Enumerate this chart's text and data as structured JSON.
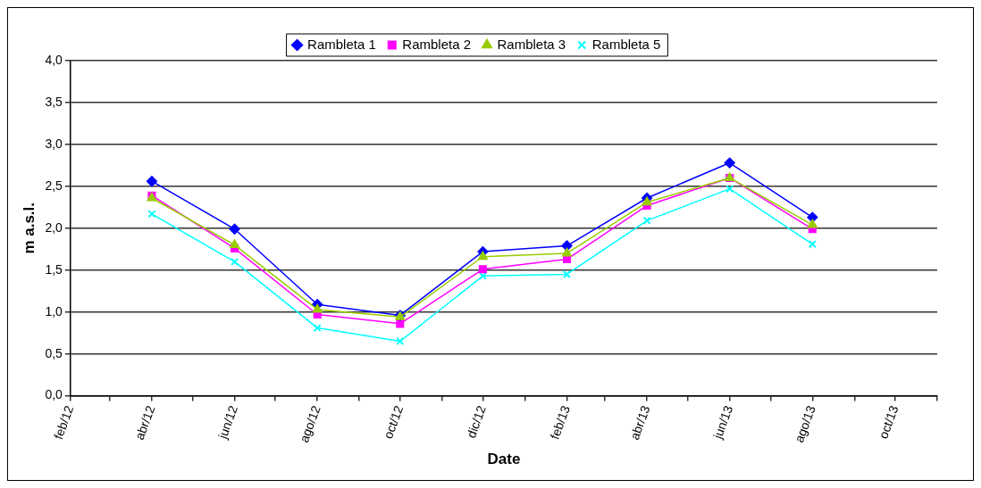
{
  "chart_data": {
    "type": "line",
    "xlabel": "Date",
    "ylabel": "m a.s.l.",
    "x": [
      "2012-04",
      "2012-06",
      "2012-08",
      "2012-10",
      "2012-12",
      "2013-02",
      "2013-04",
      "2013-06",
      "2013-08"
    ],
    "series": [
      {
        "name": "Rambleta 1",
        "color": "#0000ff",
        "marker": "diamond",
        "values": [
          2.56,
          1.99,
          1.09,
          0.96,
          1.72,
          1.79,
          2.36,
          2.78,
          2.13
        ]
      },
      {
        "name": "Rambleta 2",
        "color": "#ff00ff",
        "marker": "square",
        "values": [
          2.39,
          1.76,
          0.97,
          0.86,
          1.51,
          1.63,
          2.27,
          2.6,
          1.99
        ]
      },
      {
        "name": "Rambleta 3",
        "color": "#99cc00",
        "marker": "triangle",
        "values": [
          2.36,
          1.8,
          1.03,
          0.94,
          1.66,
          1.7,
          2.31,
          2.6,
          2.04
        ]
      },
      {
        "name": "Rambleta 5",
        "color": "#00ffff",
        "marker": "cross",
        "values": [
          2.17,
          1.6,
          0.81,
          0.65,
          1.43,
          1.45,
          2.09,
          2.47,
          1.81
        ]
      }
    ],
    "xlim": [
      "2012-02",
      "2013-11"
    ],
    "xticks": [
      {
        "value": "2012-02",
        "label": "feb/12"
      },
      {
        "value": "2012-03",
        "label": null
      },
      {
        "value": "2012-04",
        "label": "abr/12"
      },
      {
        "value": "2012-05",
        "label": null
      },
      {
        "value": "2012-06",
        "label": "jun/12"
      },
      {
        "value": "2012-07",
        "label": null
      },
      {
        "value": "2012-08",
        "label": "ago/12"
      },
      {
        "value": "2012-09",
        "label": null
      },
      {
        "value": "2012-10",
        "label": "oct/12"
      },
      {
        "value": "2012-11",
        "label": null
      },
      {
        "value": "2012-12",
        "label": "dic/12"
      },
      {
        "value": "2013-01",
        "label": null
      },
      {
        "value": "2013-02",
        "label": "feb/13"
      },
      {
        "value": "2013-03",
        "label": null
      },
      {
        "value": "2013-04",
        "label": "abr/13"
      },
      {
        "value": "2013-05",
        "label": null
      },
      {
        "value": "2013-06",
        "label": "jun/13"
      },
      {
        "value": "2013-07",
        "label": null
      },
      {
        "value": "2013-08",
        "label": "ago/13"
      },
      {
        "value": "2013-09",
        "label": null
      },
      {
        "value": "2013-10",
        "label": "oct/13"
      },
      {
        "value": "2013-11",
        "label": null
      }
    ],
    "ylim": [
      0,
      4
    ],
    "yticks": [
      {
        "value": 0,
        "label": "0,0"
      },
      {
        "value": 0.5,
        "label": "0,5"
      },
      {
        "value": 1,
        "label": "1,0"
      },
      {
        "value": 1.5,
        "label": "1,5"
      },
      {
        "value": 2,
        "label": "2,0"
      },
      {
        "value": 2.5,
        "label": "2,5"
      },
      {
        "value": 3,
        "label": "3,0"
      },
      {
        "value": 3.5,
        "label": "3,5"
      },
      {
        "value": 4,
        "label": "4,0"
      }
    ],
    "grid": "y",
    "legend": "top",
    "line_style": "solid"
  }
}
